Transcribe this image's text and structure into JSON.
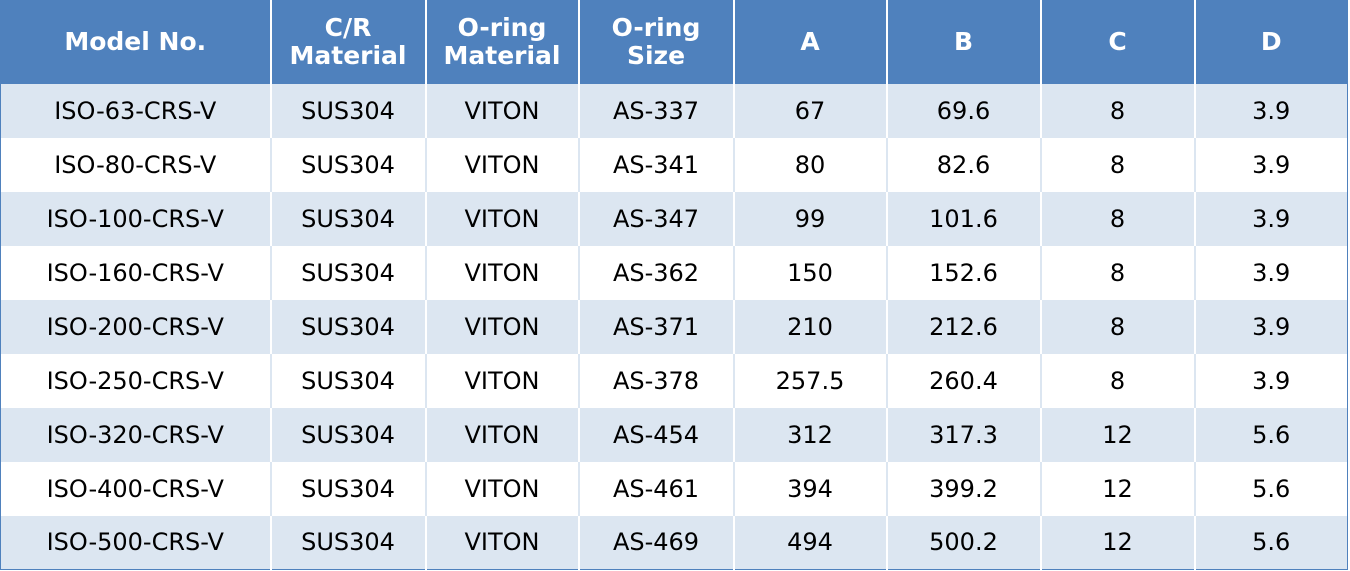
{
  "table": {
    "headers": [
      [
        "Model No."
      ],
      [
        "C/R",
        "Material"
      ],
      [
        "O-ring",
        "Material"
      ],
      [
        "O-ring",
        "Size"
      ],
      [
        "A"
      ],
      [
        "B"
      ],
      [
        "C"
      ],
      [
        "D"
      ]
    ],
    "rows": [
      [
        "ISO-63-CRS-V",
        "SUS304",
        "VITON",
        "AS-337",
        "67",
        "69.6",
        "8",
        "3.9"
      ],
      [
        "ISO-80-CRS-V",
        "SUS304",
        "VITON",
        "AS-341",
        "80",
        "82.6",
        "8",
        "3.9"
      ],
      [
        "ISO-100-CRS-V",
        "SUS304",
        "VITON",
        "AS-347",
        "99",
        "101.6",
        "8",
        "3.9"
      ],
      [
        "ISO-160-CRS-V",
        "SUS304",
        "VITON",
        "AS-362",
        "150",
        "152.6",
        "8",
        "3.9"
      ],
      [
        "ISO-200-CRS-V",
        "SUS304",
        "VITON",
        "AS-371",
        "210",
        "212.6",
        "8",
        "3.9"
      ],
      [
        "ISO-250-CRS-V",
        "SUS304",
        "VITON",
        "AS-378",
        "257.5",
        "260.4",
        "8",
        "3.9"
      ],
      [
        "ISO-320-CRS-V",
        "SUS304",
        "VITON",
        "AS-454",
        "312",
        "317.3",
        "12",
        "5.6"
      ],
      [
        "ISO-400-CRS-V",
        "SUS304",
        "VITON",
        "AS-461",
        "394",
        "399.2",
        "12",
        "5.6"
      ],
      [
        "ISO-500-CRS-V",
        "SUS304",
        "VITON",
        "AS-469",
        "494",
        "500.2",
        "12",
        "5.6"
      ]
    ]
  },
  "colors": {
    "header_bg": "#4f81bd",
    "header_text": "#ffffff",
    "band_row": "#dce6f1",
    "plain_row": "#ffffff"
  }
}
